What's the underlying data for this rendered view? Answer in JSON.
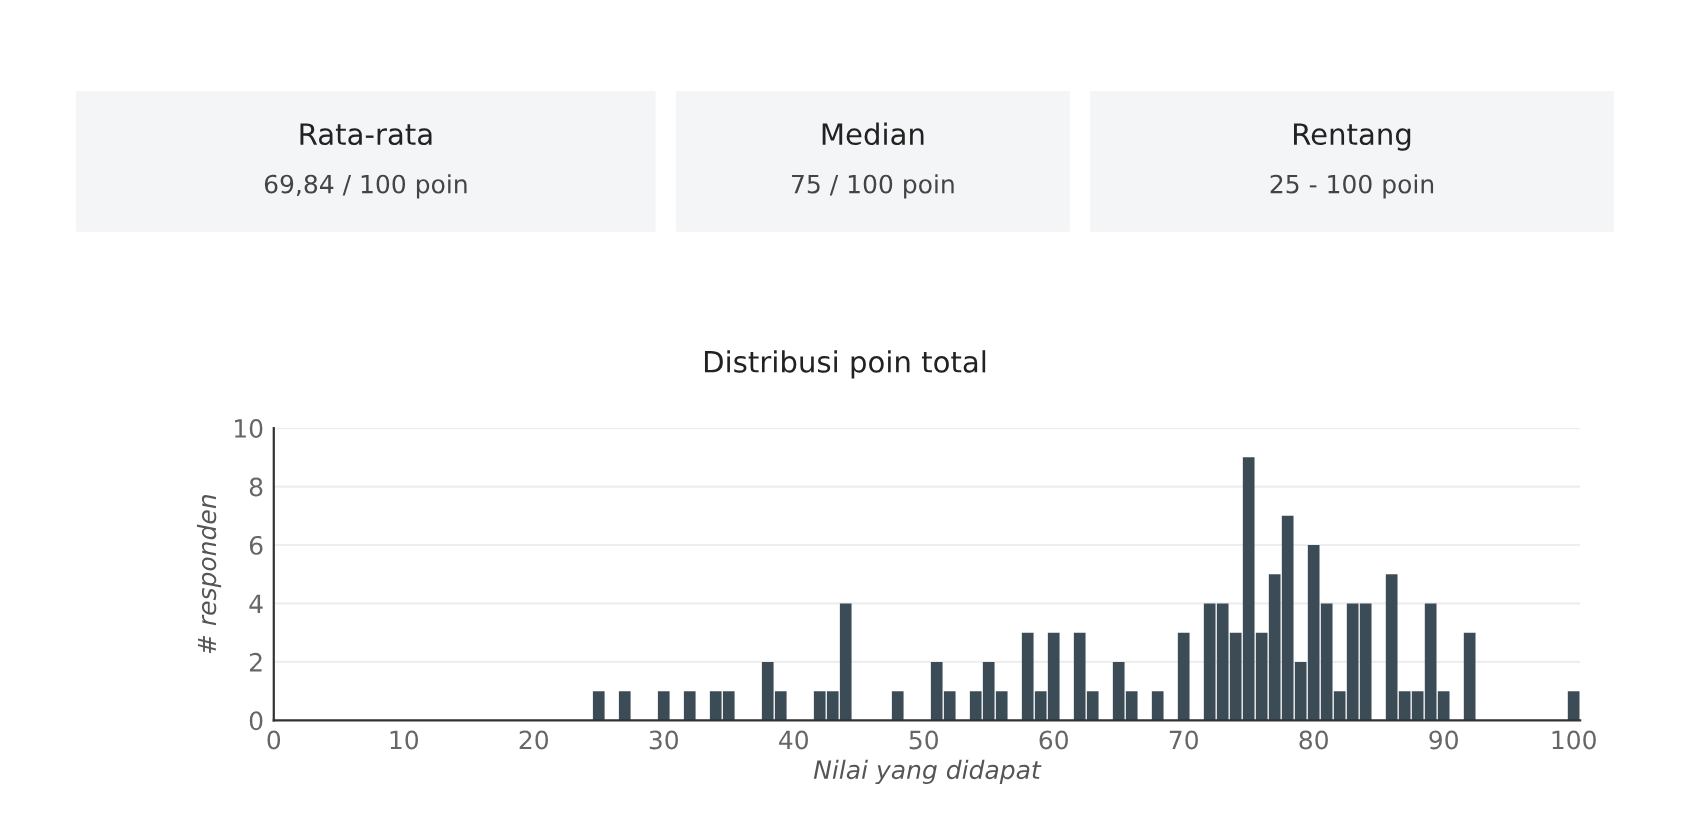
{
  "chart_data": {
    "type": "bar",
    "title": "Distribusi poin total",
    "xlabel": "Nilai yang didapat",
    "ylabel": "# responden",
    "annotations": [
      "Rata-rata",
      "69,84 / 100 poin",
      "Median",
      "75 / 100 poin",
      "Rentang",
      "25 - 100 poin"
    ],
    "x": [
      25,
      27,
      30,
      32,
      34,
      35,
      38,
      39,
      42,
      43,
      44,
      48,
      51,
      52,
      54,
      55,
      56,
      58,
      59,
      60,
      62,
      63,
      65,
      66,
      68,
      70,
      72,
      73,
      74,
      75,
      76,
      77,
      78,
      79,
      80,
      81,
      82,
      83,
      84,
      86,
      87,
      88,
      89,
      90,
      92,
      100
    ],
    "series": [
      {
        "color": "#3b4c56",
        "values": [
          1,
          1,
          1,
          1,
          1,
          1,
          2,
          1,
          1,
          1,
          4,
          1,
          2,
          1,
          1,
          2,
          1,
          3,
          1,
          3,
          3,
          1,
          2,
          1,
          1,
          3,
          4,
          4,
          3,
          9,
          3,
          5,
          7,
          2,
          6,
          4,
          1,
          4,
          4,
          5,
          1,
          1,
          4,
          1,
          3,
          1
        ]
      }
    ],
    "xlim": [
      0,
      100.5
    ],
    "xticks": [
      0,
      10,
      20,
      30,
      40,
      50,
      60,
      70,
      80,
      90,
      100
    ],
    "ylim": [
      0,
      10
    ],
    "yticks": [
      0,
      2,
      4,
      6,
      8,
      10
    ],
    "grid": "y"
  }
}
